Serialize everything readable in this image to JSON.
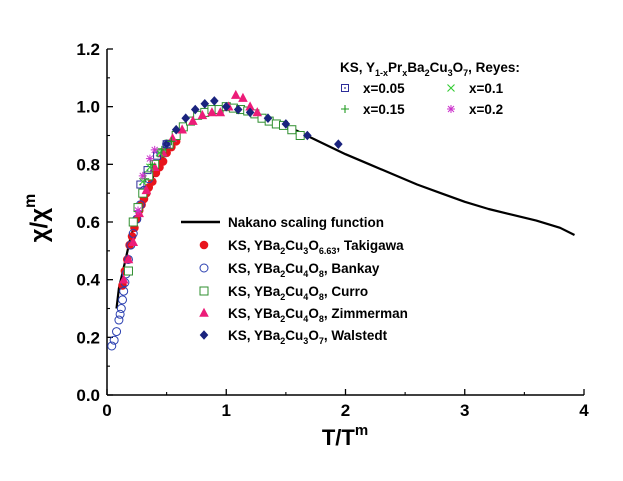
{
  "chart_data": {
    "type": "scatter",
    "xlabel": "T/T",
    "xlabel_sup": "m",
    "ylabel": "χ/χ",
    "ylabel_sup": "m",
    "xlim": [
      0,
      4
    ],
    "ylim": [
      0,
      1.2
    ],
    "xticks": [
      "0",
      "1",
      "2",
      "3",
      "4"
    ],
    "yticks": [
      "0.0",
      "0.2",
      "0.4",
      "0.6",
      "0.8",
      "1.0",
      "1.2"
    ],
    "colors": {
      "nakano": "#000000",
      "takigawa": "#e8141c",
      "bankay": "#2a3fb0",
      "curro": "#2f8f2f",
      "zimmerman": "#ec1c78",
      "walstedt": "#1a237e",
      "reyes005": "#2d2d9a",
      "reyes01": "#33cc33",
      "reyes015": "#1f9a1f",
      "reyes02": "#cc33cc"
    },
    "reyes_legend": {
      "title_parts": [
        "KS, Y",
        "1-x",
        "Pr",
        "x",
        "Ba",
        "2",
        "Cu",
        "3",
        "O",
        "7",
        ", Reyes:"
      ],
      "entries": [
        "x=0.05",
        "x=0.1",
        "x=0.15",
        "x=0.2"
      ]
    },
    "main_legend": {
      "nakano": "Nakano scaling function",
      "takigawa": [
        "KS, YBa",
        "2",
        "Cu",
        "3",
        "O",
        "6.63",
        ", Takigawa"
      ],
      "bankay": [
        "KS, YBa",
        "2",
        "Cu",
        "4",
        "O",
        "8",
        ", Bankay"
      ],
      "curro": [
        "KS, YBa",
        "2",
        "Cu",
        "4",
        "O",
        "8",
        ",  Curro"
      ],
      "zimmerman": [
        "KS, YBa",
        "2",
        "Cu",
        "4",
        "O",
        "8",
        ", Zimmerman"
      ],
      "walstedt": [
        "KS, YBa",
        "2",
        "Cu",
        "3",
        "O",
        "7",
        ", Walstedt"
      ]
    },
    "series": [
      {
        "name": "Nakano scaling function",
        "kind": "line",
        "x": [
          0.08,
          0.1,
          0.15,
          0.2,
          0.3,
          0.4,
          0.5,
          0.6,
          0.7,
          0.8,
          0.9,
          1.0,
          1.1,
          1.2,
          1.4,
          1.6,
          1.8,
          2.0,
          2.2,
          2.4,
          2.6,
          2.8,
          3.0,
          3.2,
          3.4,
          3.6,
          3.8,
          3.92
        ],
        "y": [
          0.3,
          0.37,
          0.46,
          0.55,
          0.67,
          0.77,
          0.85,
          0.91,
          0.95,
          0.975,
          0.99,
          0.995,
          0.99,
          0.98,
          0.95,
          0.915,
          0.875,
          0.835,
          0.8,
          0.765,
          0.73,
          0.7,
          0.67,
          0.645,
          0.625,
          0.605,
          0.58,
          0.555
        ]
      },
      {
        "name": "Takigawa",
        "kind": "marker",
        "marker": "circle-filled",
        "x": [
          0.13,
          0.15,
          0.17,
          0.19,
          0.21,
          0.23,
          0.25,
          0.27,
          0.29,
          0.31,
          0.33,
          0.35,
          0.38,
          0.41,
          0.44,
          0.47,
          0.5,
          0.54,
          0.58
        ],
        "y": [
          0.38,
          0.43,
          0.47,
          0.52,
          0.55,
          0.58,
          0.61,
          0.64,
          0.66,
          0.68,
          0.7,
          0.72,
          0.74,
          0.77,
          0.79,
          0.81,
          0.84,
          0.86,
          0.88
        ]
      },
      {
        "name": "Bankay",
        "kind": "marker",
        "marker": "circle-open",
        "x": [
          0.04,
          0.06,
          0.08,
          0.1,
          0.11,
          0.12,
          0.13,
          0.14,
          0.15,
          0.16,
          0.18,
          0.2,
          0.22,
          0.25,
          0.28,
          0.31,
          0.35,
          0.4,
          0.45,
          0.5
        ],
        "y": [
          0.17,
          0.19,
          0.22,
          0.26,
          0.28,
          0.3,
          0.33,
          0.36,
          0.39,
          0.42,
          0.47,
          0.52,
          0.56,
          0.61,
          0.66,
          0.71,
          0.75,
          0.8,
          0.84,
          0.87
        ]
      },
      {
        "name": "Curro",
        "kind": "marker",
        "marker": "square-open",
        "x": [
          0.18,
          0.22,
          0.26,
          0.3,
          0.35,
          0.4,
          0.46,
          0.52,
          0.58,
          0.64,
          0.7,
          0.76,
          0.82,
          0.88,
          0.94,
          1.0,
          1.06,
          1.12,
          1.18,
          1.24,
          1.3,
          1.36,
          1.42,
          1.48,
          1.55,
          1.62
        ],
        "y": [
          0.43,
          0.6,
          0.65,
          0.7,
          0.76,
          0.8,
          0.84,
          0.87,
          0.9,
          0.93,
          0.95,
          0.97,
          0.98,
          0.99,
          0.99,
          1.0,
          0.995,
          0.99,
          0.985,
          0.975,
          0.96,
          0.95,
          0.94,
          0.935,
          0.92,
          0.9
        ]
      },
      {
        "name": "Zimmerman",
        "kind": "marker",
        "marker": "triangle-filled",
        "x": [
          0.14,
          0.18,
          0.22,
          0.27,
          0.33,
          0.4,
          0.47,
          0.55,
          0.63,
          0.72,
          0.8,
          0.88,
          0.95,
          1.02,
          1.08,
          1.14,
          1.2,
          1.26
        ],
        "y": [
          0.4,
          0.47,
          0.53,
          0.63,
          0.71,
          0.79,
          0.84,
          0.89,
          0.92,
          0.95,
          0.97,
          0.98,
          0.98,
          1.0,
          1.04,
          1.03,
          1.0,
          0.98
        ]
      },
      {
        "name": "Walstedt",
        "kind": "marker",
        "marker": "diamond-filled",
        "x": [
          0.5,
          0.58,
          0.66,
          0.74,
          0.82,
          0.9,
          1.0,
          1.1,
          1.2,
          1.35,
          1.5,
          1.68,
          1.94
        ],
        "y": [
          0.87,
          0.92,
          0.96,
          0.99,
          1.01,
          1.02,
          1.0,
          0.99,
          0.98,
          0.96,
          0.94,
          0.9,
          0.87
        ]
      },
      {
        "name": "x=0.05",
        "kind": "marker",
        "marker": "square-dot",
        "x": [
          0.28,
          0.34,
          0.42,
          0.5
        ],
        "y": [
          0.73,
          0.78,
          0.83,
          0.87
        ]
      },
      {
        "name": "x=0.1",
        "kind": "marker",
        "marker": "x-cross",
        "x": [
          0.3,
          0.36,
          0.44
        ],
        "y": [
          0.74,
          0.79,
          0.84
        ]
      },
      {
        "name": "x=0.15",
        "kind": "marker",
        "marker": "plus",
        "x": [
          0.32,
          0.38,
          0.46,
          0.54
        ],
        "y": [
          0.75,
          0.8,
          0.85,
          0.88
        ]
      },
      {
        "name": "x=0.2",
        "kind": "marker",
        "marker": "asterisk",
        "x": [
          0.26,
          0.3,
          0.36,
          0.4
        ],
        "y": [
          0.64,
          0.76,
          0.82,
          0.85
        ]
      }
    ]
  }
}
